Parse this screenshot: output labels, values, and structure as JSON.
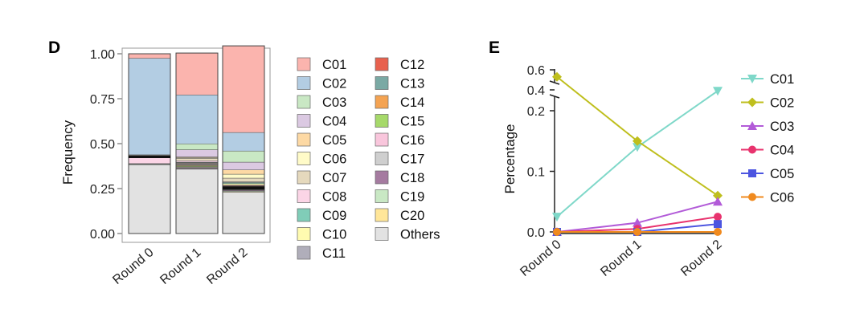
{
  "chart_data": [
    {
      "panel": "D",
      "type": "bar",
      "stacked": true,
      "ylabel": "Frequency",
      "xlabel": "",
      "ylim": [
        0,
        1
      ],
      "yticks": [
        "0.00",
        "0.25",
        "0.50",
        "0.75",
        "1.00"
      ],
      "categories": [
        "Round 0",
        "Round 1",
        "Round 2"
      ],
      "series": [
        {
          "name": "Others",
          "color": "#e2e2e2",
          "values": [
            0.383,
            0.358,
            0.23
          ]
        },
        {
          "name": "C20",
          "color": "#ffe699",
          "values": [
            0.0,
            0.0,
            0.004
          ]
        },
        {
          "name": "C19",
          "color": "#c9e8c4",
          "values": [
            0.0,
            0.0,
            0.004
          ]
        },
        {
          "name": "C18",
          "color": "#a57ba0",
          "values": [
            0.0,
            0.004,
            0.004
          ]
        },
        {
          "name": "C17",
          "color": "#cfcfcf",
          "values": [
            0.0,
            0.004,
            0.004
          ]
        },
        {
          "name": "C16",
          "color": "#f9c6dc",
          "values": [
            0.0,
            0.004,
            0.004
          ]
        },
        {
          "name": "C15",
          "color": "#a6d96a",
          "values": [
            0.0,
            0.004,
            0.004
          ]
        },
        {
          "name": "C14",
          "color": "#f4a352",
          "values": [
            0.0,
            0.004,
            0.004
          ]
        },
        {
          "name": "C13",
          "color": "#7aa9a4",
          "values": [
            0.0,
            0.006,
            0.004
          ]
        },
        {
          "name": "C12",
          "color": "#e8614e",
          "values": [
            0.0,
            0.004,
            0.004
          ]
        },
        {
          "name": "C11",
          "color": "#b0aeba",
          "values": [
            0.002,
            0.004,
            0.004
          ]
        },
        {
          "name": "C10",
          "color": "#fffbb0",
          "values": [
            0.002,
            0.003,
            0.008
          ]
        },
        {
          "name": "C09",
          "color": "#80cdb8",
          "values": [
            0.002,
            0.002,
            0.006
          ]
        },
        {
          "name": "C08",
          "color": "#fbd5e6",
          "values": [
            0.045,
            0.008,
            0.004
          ]
        },
        {
          "name": "C07",
          "color": "#e5d9bd",
          "values": [
            0.002,
            0.013,
            0.02
          ]
        },
        {
          "name": "C06",
          "color": "#fffbc8",
          "values": [
            0.002,
            0.004,
            0.022
          ]
        },
        {
          "name": "C05",
          "color": "#fdd9a4",
          "values": [
            0.0,
            0.004,
            0.024
          ]
        },
        {
          "name": "C04",
          "color": "#dbc9e2",
          "values": [
            0.0,
            0.04,
            0.043
          ]
        },
        {
          "name": "C03",
          "color": "#c9e8c4",
          "values": [
            0.0,
            0.033,
            0.062
          ]
        },
        {
          "name": "C02",
          "color": "#b3cde3",
          "values": [
            0.537,
            0.272,
            0.103
          ]
        },
        {
          "name": "C01",
          "color": "#fbb4ae",
          "values": [
            0.025,
            0.233,
            0.482
          ]
        }
      ],
      "legend": {
        "col1": [
          "C01",
          "C02",
          "C03",
          "C04",
          "C05",
          "C06",
          "C07",
          "C08",
          "C09",
          "C10",
          "C11"
        ],
        "col2": [
          "C12",
          "C13",
          "C14",
          "C15",
          "C16",
          "C17",
          "C18",
          "C19",
          "C20",
          "Others"
        ]
      }
    },
    {
      "panel": "E",
      "type": "line",
      "ylabel": "Percentage",
      "xlabel": "",
      "y_axis_break": {
        "lower": [
          0,
          0.2
        ],
        "upper": [
          0.4,
          0.6
        ]
      },
      "yticks": [
        "0.0",
        "0.1",
        "0.2",
        "0.4",
        "0.6"
      ],
      "categories": [
        "Round 0",
        "Round 1",
        "Round 2"
      ],
      "series": [
        {
          "name": "C01",
          "color": "#7fd8c9",
          "marker": "triangle-down",
          "values": [
            0.025,
            0.14,
            0.39
          ]
        },
        {
          "name": "C02",
          "color": "#bfbf1e",
          "marker": "diamond",
          "values": [
            0.53,
            0.15,
            0.06
          ]
        },
        {
          "name": "C03",
          "color": "#b25bd8",
          "marker": "triangle-up",
          "values": [
            0.0,
            0.015,
            0.05
          ]
        },
        {
          "name": "C04",
          "color": "#e8336e",
          "marker": "circle",
          "values": [
            0.0,
            0.005,
            0.025
          ]
        },
        {
          "name": "C05",
          "color": "#4c55e0",
          "marker": "square",
          "values": [
            0.0,
            0.0,
            0.013
          ]
        },
        {
          "name": "C06",
          "color": "#f08a1e",
          "marker": "circle",
          "values": [
            0.0,
            0.0,
            0.0
          ]
        }
      ]
    }
  ]
}
